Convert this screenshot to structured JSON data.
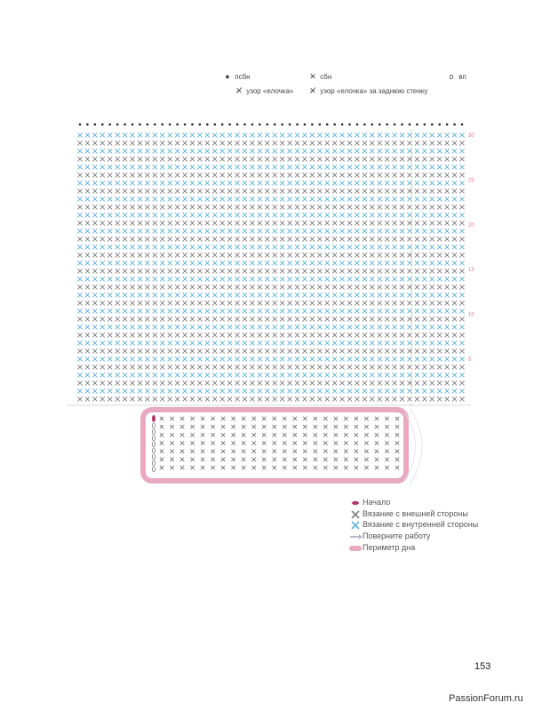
{
  "legend_top": {
    "psbn": "псбн",
    "sbn": "сбн",
    "vp": "вп",
    "herringbone": "узор «елочка»",
    "herringbone_back": "узор «елочка» за заднюю стенку"
  },
  "row_numbers": [
    "30",
    "25",
    "20",
    "15",
    "10",
    "5"
  ],
  "legend_bottom": {
    "start": "Начало",
    "outer": "Вязание с внешней стороны",
    "inner": "Вязание с внутренней стороны",
    "turn": "Поверните работу",
    "perimeter": "Периметр дна"
  },
  "colors": {
    "blue": "#5fb3d6",
    "gray": "#7f7f7f",
    "pink": "#e8a9c1",
    "start": "#b0396a",
    "arrow": "#b8b8c8",
    "row_number": "#e07a96"
  },
  "page_number": "153",
  "watermark": "PassionForum.ru"
}
